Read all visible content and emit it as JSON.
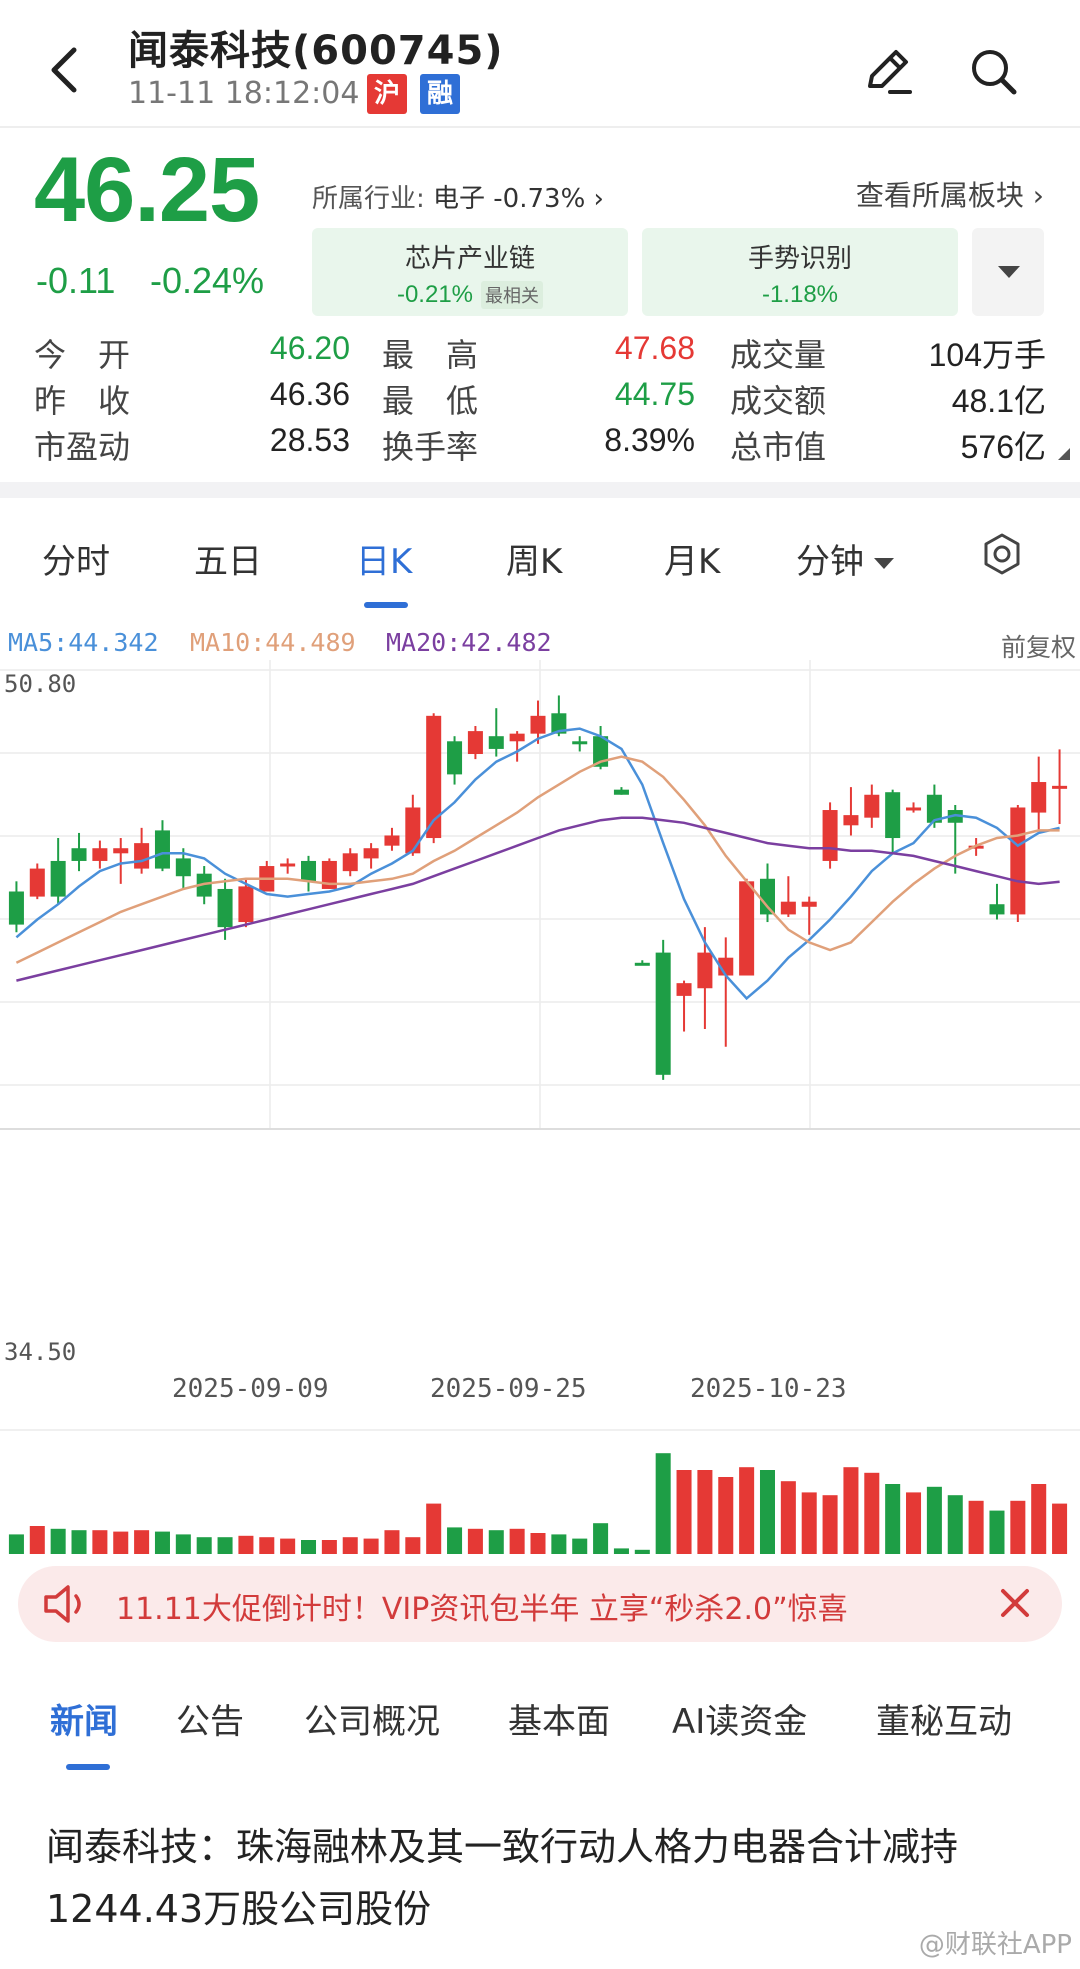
{
  "header": {
    "title": "闻泰科技(600745)",
    "time": "11-11 18:12:04",
    "badge_hu": "沪",
    "badge_rong": "融"
  },
  "quote": {
    "price": "46.25",
    "change": "-0.11",
    "change_pct": "-0.24%",
    "industry_label": "所属行业:",
    "industry_value": "电子 -0.73% ›",
    "view_sector": "查看所属板块 ›",
    "tags": [
      {
        "name": "芯片产业链",
        "pct": "-0.21%",
        "extra": "最相关"
      },
      {
        "name": "手势识别",
        "pct": "-1.18%"
      }
    ]
  },
  "stats": {
    "rows": [
      [
        {
          "label": "今　开",
          "value": "46.20",
          "color": "#1e9e46"
        },
        {
          "label": "最　高",
          "value": "47.68",
          "color": "#e53935"
        },
        {
          "label": "成交量",
          "value": "104万手",
          "color": "#222222"
        }
      ],
      [
        {
          "label": "昨　收",
          "value": "46.36",
          "color": "#222222"
        },
        {
          "label": "最　低",
          "value": "44.75",
          "color": "#1e9e46"
        },
        {
          "label": "成交额",
          "value": "48.1亿",
          "color": "#222222"
        }
      ],
      [
        {
          "label": "市盈动",
          "value": "28.53",
          "color": "#222222"
        },
        {
          "label": "换手率",
          "value": "8.39%",
          "color": "#222222"
        },
        {
          "label": "总市值",
          "value": "576亿",
          "color": "#222222"
        }
      ]
    ]
  },
  "chart_tabs": [
    "分时",
    "五日",
    "日K",
    "周K",
    "月K",
    "分钟"
  ],
  "colors": {
    "up": "#e53935",
    "down": "#1e9e46",
    "ma5": "#4a90d9",
    "ma10": "#e0a07a",
    "ma20": "#7b3fa0",
    "accent": "#2f6fd6"
  },
  "ma_legend": {
    "ma5": "MA5:44.342",
    "ma10": "MA10:44.489",
    "ma20": "MA20:42.482",
    "fuquan": "前复权"
  },
  "chart_data": {
    "type": "candlestick",
    "ylim": [
      34.5,
      50.8
    ],
    "yticks": [
      "50.80",
      "34.50"
    ],
    "xticks": [
      {
        "label": "2025-09-09",
        "index": 12
      },
      {
        "label": "2025-09-25",
        "index": 24
      },
      {
        "label": "2025-10-23",
        "index": 37
      }
    ],
    "candles": [
      [
        42.1,
        40.8,
        42.5,
        40.5
      ],
      [
        41.9,
        43.0,
        43.2,
        41.8
      ],
      [
        43.3,
        41.9,
        44.2,
        41.6
      ],
      [
        43.8,
        43.3,
        44.4,
        42.9
      ],
      [
        43.3,
        43.8,
        44.1,
        43.0
      ],
      [
        43.6,
        43.8,
        44.2,
        42.4
      ],
      [
        43.0,
        44.0,
        44.6,
        42.8
      ],
      [
        44.5,
        43.0,
        44.9,
        42.9
      ],
      [
        43.4,
        42.7,
        43.8,
        42.2
      ],
      [
        42.8,
        41.9,
        43.1,
        41.6
      ],
      [
        42.2,
        40.7,
        42.6,
        40.2
      ],
      [
        40.9,
        42.3,
        42.6,
        40.7
      ],
      [
        42.1,
        43.1,
        43.3,
        42.1
      ],
      [
        43.1,
        43.2,
        43.4,
        42.8
      ],
      [
        43.3,
        42.5,
        43.5,
        42.1
      ],
      [
        42.2,
        43.3,
        43.4,
        42.2
      ],
      [
        42.9,
        43.6,
        43.8,
        42.7
      ],
      [
        43.4,
        43.8,
        44.0,
        43.0
      ],
      [
        43.9,
        44.3,
        44.6,
        43.7
      ],
      [
        43.6,
        45.4,
        45.9,
        43.5
      ],
      [
        44.2,
        49.0,
        49.1,
        44.0
      ],
      [
        48.0,
        46.7,
        48.2,
        46.3
      ],
      [
        47.5,
        48.4,
        48.6,
        47.3
      ],
      [
        48.2,
        47.7,
        49.3,
        47.4
      ],
      [
        48.0,
        48.3,
        48.4,
        47.2
      ],
      [
        48.3,
        49.0,
        49.6,
        47.9
      ],
      [
        49.1,
        48.3,
        49.8,
        48.2
      ],
      [
        48.0,
        47.9,
        48.2,
        47.6
      ],
      [
        48.2,
        47.0,
        48.6,
        46.9
      ],
      [
        46.1,
        45.9,
        46.2,
        45.9
      ],
      [
        39.3,
        39.2,
        39.4,
        39.2
      ],
      [
        39.7,
        34.9,
        40.2,
        34.7
      ],
      [
        38.0,
        38.5,
        38.6,
        36.6
      ],
      [
        38.3,
        39.7,
        40.7,
        36.7
      ],
      [
        38.8,
        39.5,
        40.3,
        36.0
      ],
      [
        38.8,
        42.5,
        42.6,
        38.8
      ],
      [
        42.6,
        41.2,
        43.2,
        40.9
      ],
      [
        41.2,
        41.7,
        42.7,
        41.1
      ],
      [
        41.5,
        41.7,
        41.9,
        40.4
      ],
      [
        43.3,
        45.3,
        45.6,
        43.0
      ],
      [
        44.7,
        45.1,
        46.2,
        44.3
      ],
      [
        45.0,
        45.9,
        46.3,
        44.6
      ],
      [
        46.0,
        44.2,
        46.1,
        43.6
      ],
      [
        45.3,
        45.4,
        45.6,
        45.2
      ],
      [
        45.9,
        44.8,
        46.3,
        44.6
      ],
      [
        45.3,
        44.8,
        45.5,
        42.8
      ],
      [
        43.8,
        43.9,
        44.2,
        43.5
      ],
      [
        41.6,
        41.2,
        42.4,
        41.0
      ],
      [
        41.2,
        45.4,
        45.5,
        40.9
      ],
      [
        45.2,
        46.4,
        47.4,
        44.5
      ],
      [
        46.2,
        46.25,
        47.68,
        44.75
      ]
    ],
    "volumes": [
      0.14,
      0.2,
      0.18,
      0.17,
      0.17,
      0.16,
      0.17,
      0.16,
      0.14,
      0.12,
      0.12,
      0.13,
      0.12,
      0.11,
      0.1,
      0.1,
      0.12,
      0.11,
      0.17,
      0.12,
      0.36,
      0.19,
      0.18,
      0.17,
      0.18,
      0.15,
      0.14,
      0.11,
      0.22,
      0.04,
      0.03,
      0.72,
      0.6,
      0.6,
      0.55,
      0.62,
      0.6,
      0.52,
      0.44,
      0.42,
      0.62,
      0.58,
      0.5,
      0.44,
      0.48,
      0.42,
      0.38,
      0.31,
      0.38,
      0.5,
      0.36
    ],
    "ma5": [
      40.3,
      41.0,
      41.6,
      42.3,
      42.9,
      43.2,
      43.3,
      43.6,
      43.6,
      43.4,
      42.8,
      42.4,
      42.0,
      41.9,
      42.0,
      42.1,
      42.3,
      42.8,
      43.2,
      43.7,
      44.9,
      45.6,
      46.5,
      47.2,
      47.6,
      48.1,
      48.4,
      48.5,
      48.2,
      47.7,
      46.3,
      44.0,
      41.8,
      40.1,
      38.8,
      37.9,
      38.6,
      39.5,
      40.2,
      41.0,
      41.9,
      42.9,
      43.6,
      44.0,
      44.9,
      45.1,
      45.0,
      44.6,
      43.9,
      44.4,
      44.6
    ],
    "ma10": [
      39.3,
      39.7,
      40.1,
      40.5,
      40.9,
      41.3,
      41.6,
      41.9,
      42.2,
      42.4,
      42.5,
      42.6,
      42.6,
      42.6,
      42.5,
      42.4,
      42.4,
      42.5,
      42.6,
      42.8,
      43.3,
      43.7,
      44.2,
      44.7,
      45.2,
      45.8,
      46.3,
      46.8,
      47.2,
      47.4,
      47.2,
      46.6,
      45.7,
      44.7,
      43.5,
      42.5,
      41.5,
      40.6,
      40.1,
      39.8,
      40.1,
      40.9,
      41.7,
      42.4,
      43.0,
      43.5,
      43.9,
      44.2,
      44.3,
      44.5,
      44.5
    ],
    "ma20": [
      38.6,
      38.8,
      39.0,
      39.2,
      39.4,
      39.6,
      39.8,
      40.0,
      40.2,
      40.4,
      40.6,
      40.8,
      41.0,
      41.2,
      41.4,
      41.6,
      41.8,
      42.0,
      42.2,
      42.4,
      42.7,
      43.0,
      43.3,
      43.6,
      43.9,
      44.2,
      44.5,
      44.7,
      44.9,
      45.0,
      45.0,
      44.9,
      44.8,
      44.6,
      44.4,
      44.2,
      44.0,
      43.9,
      43.8,
      43.8,
      43.7,
      43.7,
      43.6,
      43.5,
      43.3,
      43.1,
      42.9,
      42.7,
      42.5,
      42.4,
      42.48
    ]
  },
  "promo": {
    "text": "11.11大促倒计时！VIP资讯包半年 立享“秒杀2.0”惊喜"
  },
  "news_tabs": [
    "新闻",
    "公告",
    "公司概况",
    "基本面",
    "AI读资金",
    "董秘互动"
  ],
  "headline": "闻泰科技：珠海融林及其一致行动人格力电器合计减持1244.43万股公司股份",
  "watermark": "@财联社APP"
}
